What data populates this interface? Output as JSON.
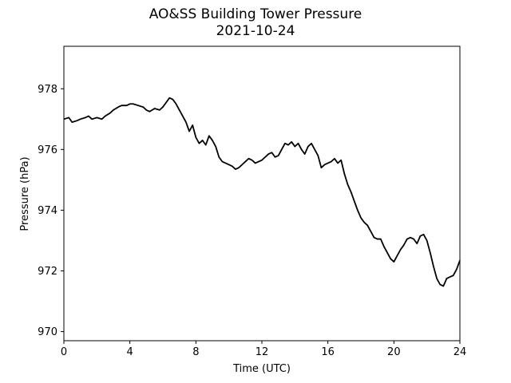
{
  "chart_data": {
    "type": "line",
    "title": "AO&SS Building Tower Pressure",
    "subtitle": "2021-10-24",
    "xlabel": "Time (UTC)",
    "ylabel": "Pressure (hPa)",
    "xlim": [
      0,
      24
    ],
    "ylim": [
      969.7,
      979.4
    ],
    "x_ticks": [
      0,
      4,
      8,
      12,
      16,
      20,
      24
    ],
    "y_ticks": [
      970,
      972,
      974,
      976,
      978
    ],
    "grid": false,
    "line_color": "#000000",
    "series": [
      {
        "x": [
          0,
          0.3,
          0.5,
          0.8,
          1.0,
          1.3,
          1.5,
          1.7,
          2.0,
          2.3,
          2.5,
          2.8,
          3.0,
          3.3,
          3.5,
          3.8,
          4.0,
          4.2,
          4.5,
          4.8,
          5.0,
          5.2,
          5.5,
          5.8,
          6.0,
          6.2,
          6.4,
          6.6,
          6.8,
          7.0,
          7.2,
          7.4,
          7.6,
          7.8,
          8.0,
          8.2,
          8.4,
          8.6,
          8.8,
          9.0,
          9.2,
          9.4,
          9.6,
          9.8,
          10.0,
          10.2,
          10.4,
          10.6,
          10.8,
          11.0,
          11.2,
          11.4,
          11.6,
          11.8,
          12.0,
          12.2,
          12.4,
          12.6,
          12.8,
          13.0,
          13.2,
          13.4,
          13.6,
          13.8,
          14.0,
          14.2,
          14.4,
          14.6,
          14.8,
          15.0,
          15.2,
          15.4,
          15.6,
          15.8,
          16.0,
          16.2,
          16.4,
          16.6,
          16.8,
          17.0,
          17.2,
          17.4,
          17.6,
          17.8,
          18.0,
          18.2,
          18.4,
          18.6,
          18.8,
          19.0,
          19.2,
          19.4,
          19.6,
          19.8,
          20.0,
          20.2,
          20.4,
          20.6,
          20.8,
          21.0,
          21.2,
          21.4,
          21.6,
          21.8,
          22.0,
          22.2,
          22.4,
          22.6,
          22.8,
          23.0,
          23.2,
          23.4,
          23.6,
          23.8,
          24.0
        ],
        "values": [
          977.0,
          977.05,
          976.9,
          976.95,
          977.0,
          977.05,
          977.1,
          977.0,
          977.05,
          977.0,
          977.1,
          977.2,
          977.3,
          977.4,
          977.45,
          977.45,
          977.5,
          977.5,
          977.45,
          977.4,
          977.3,
          977.25,
          977.35,
          977.3,
          977.4,
          977.55,
          977.7,
          977.65,
          977.5,
          977.3,
          977.1,
          976.9,
          976.6,
          976.8,
          976.4,
          976.2,
          976.3,
          976.15,
          976.45,
          976.3,
          976.1,
          975.75,
          975.6,
          975.55,
          975.5,
          975.45,
          975.35,
          975.4,
          975.5,
          975.6,
          975.7,
          975.65,
          975.55,
          975.6,
          975.65,
          975.75,
          975.85,
          975.9,
          975.75,
          975.8,
          976.0,
          976.2,
          976.15,
          976.25,
          976.1,
          976.2,
          976.0,
          975.85,
          976.1,
          976.2,
          976.0,
          975.8,
          975.4,
          975.5,
          975.55,
          975.6,
          975.7,
          975.55,
          975.65,
          975.2,
          974.85,
          974.6,
          974.3,
          974.0,
          973.75,
          973.6,
          973.5,
          973.3,
          973.1,
          973.05,
          973.05,
          972.8,
          972.6,
          972.4,
          972.3,
          972.5,
          972.7,
          972.85,
          973.05,
          973.1,
          973.05,
          972.9,
          973.15,
          973.2,
          973.0,
          972.6,
          972.15,
          971.75,
          971.55,
          971.5,
          971.75,
          971.8,
          971.85,
          972.05,
          972.35
        ]
      }
    ]
  }
}
